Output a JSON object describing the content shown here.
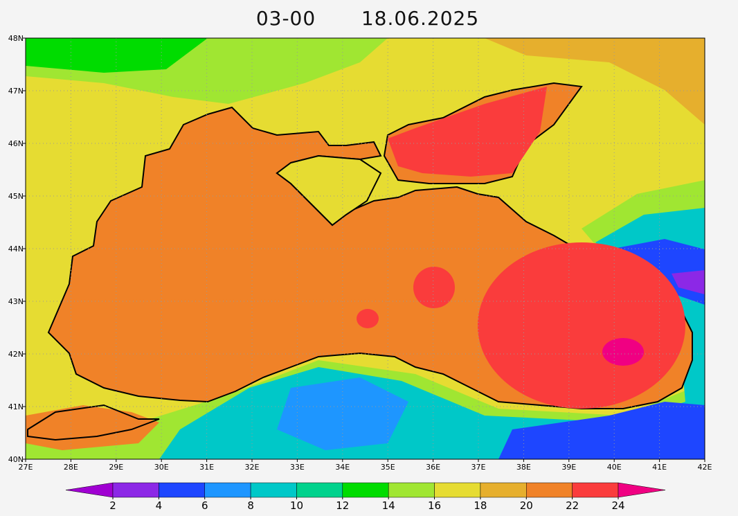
{
  "title": {
    "time": "03-00",
    "date": "18.06.2025"
  },
  "map": {
    "xlim": [
      27,
      42
    ],
    "ylim": [
      40,
      48
    ],
    "xticks": [
      {
        "value": 27,
        "label": "27E"
      },
      {
        "value": 28,
        "label": "28E"
      },
      {
        "value": 29,
        "label": "29E"
      },
      {
        "value": 30,
        "label": "30E"
      },
      {
        "value": 31,
        "label": "31E"
      },
      {
        "value": 32,
        "label": "32E"
      },
      {
        "value": 33,
        "label": "33E"
      },
      {
        "value": 34,
        "label": "34E"
      },
      {
        "value": 35,
        "label": "35E"
      },
      {
        "value": 36,
        "label": "36E"
      },
      {
        "value": 37,
        "label": "37E"
      },
      {
        "value": 38,
        "label": "38E"
      },
      {
        "value": 39,
        "label": "39E"
      },
      {
        "value": 40,
        "label": "40E"
      },
      {
        "value": 41,
        "label": "41E"
      },
      {
        "value": 42,
        "label": "42E"
      }
    ],
    "yticks": [
      {
        "value": 40,
        "label": "40N"
      },
      {
        "value": 41,
        "label": "41N"
      },
      {
        "value": 42,
        "label": "42N"
      },
      {
        "value": 43,
        "label": "43N"
      },
      {
        "value": 44,
        "label": "44N"
      },
      {
        "value": 45,
        "label": "45N"
      },
      {
        "value": 46,
        "label": "46N"
      },
      {
        "value": 47,
        "label": "47N"
      },
      {
        "value": 48,
        "label": "48N"
      }
    ]
  },
  "colorbar": {
    "ticks": [
      2,
      4,
      6,
      8,
      10,
      12,
      14,
      16,
      18,
      20,
      22,
      24
    ],
    "colors": [
      "#a000d2",
      "#8c28e6",
      "#1e46ff",
      "#1e96ff",
      "#00c8c8",
      "#00d28c",
      "#00dc00",
      "#a0e632",
      "#e6dc32",
      "#e6af2d",
      "#f08228",
      "#fa3c3c",
      "#f00082"
    ]
  }
}
